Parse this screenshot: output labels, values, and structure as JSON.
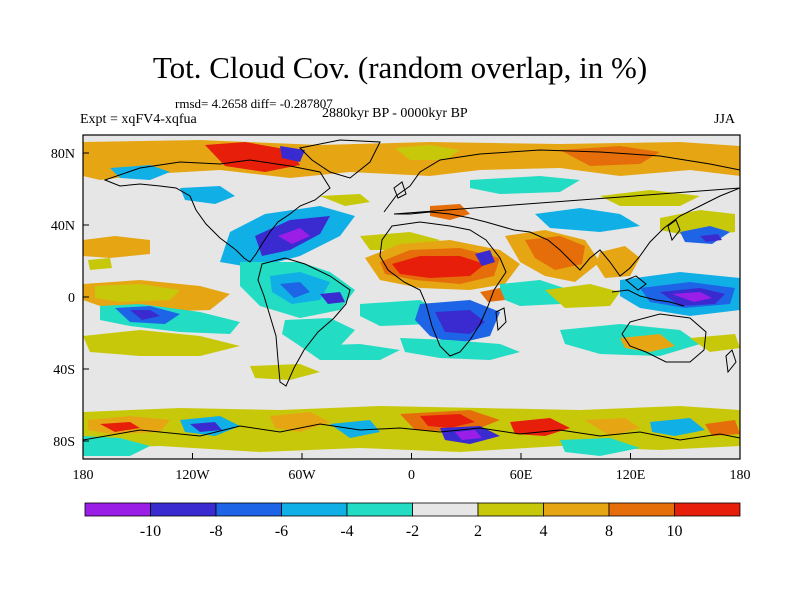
{
  "header": {
    "title": "Tot. Cloud Cov. (random overlap, in %)",
    "stats": "rmsd= 4.2658 diff= -0.287807",
    "period": "2880kyr BP - 0000kyr BP",
    "experiment": "Expt = xqFV4-xqfua",
    "season": "JJA"
  },
  "map": {
    "projection": "cylindrical equidistant",
    "lon_range": [
      -180,
      180
    ],
    "lat_range": [
      -90,
      90
    ],
    "background_color": "#e6e6e6",
    "x_ticks": [
      "180",
      "120W",
      "60W",
      "0",
      "60E",
      "120E",
      "180"
    ],
    "y_ticks": [
      "80N",
      "40N",
      "0",
      "40S",
      "80S"
    ]
  },
  "colorbar": {
    "levels": [
      "-10",
      "-8",
      "-6",
      "-4",
      "-2",
      "2",
      "4",
      "8",
      "10"
    ],
    "colors": [
      "#9a1ee6",
      "#3a2bd1",
      "#1e64e6",
      "#10b0e6",
      "#22dcc4",
      "#e6e6e6",
      "#c8c80a",
      "#e6a614",
      "#e66e0a",
      "#e61e0a"
    ]
  }
}
